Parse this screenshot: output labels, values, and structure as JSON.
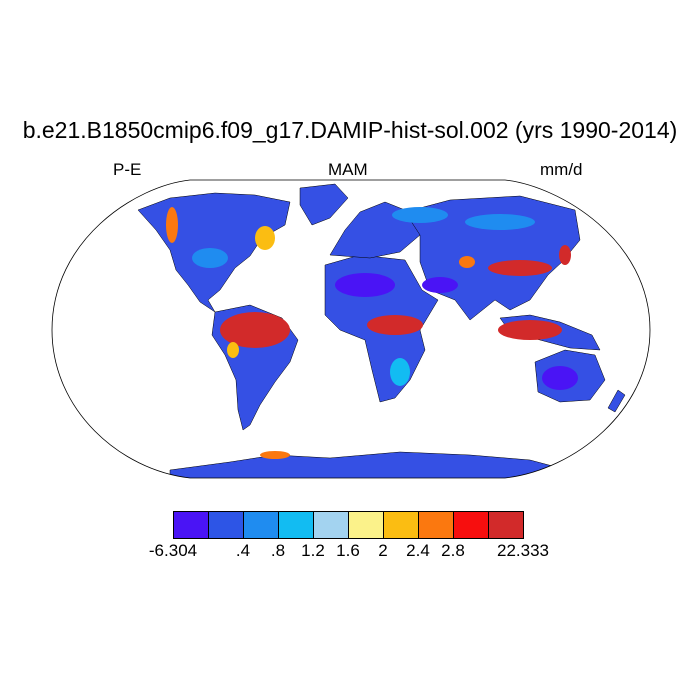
{
  "figure": {
    "title": "b.e21.B1850cmip6.f09_g17.DAMIP-hist-sol.002 (yrs 1990-2014)",
    "left_label": "P-E",
    "center_label": "MAM",
    "right_label": "mm/d"
  },
  "colorbar": {
    "colors": [
      "#4a14f5",
      "#2d55e6",
      "#1f8cf0",
      "#12bcf2",
      "#a3d3f0",
      "#fbf28a",
      "#fbbd12",
      "#fb780f",
      "#f70e0e",
      "#d22a2a"
    ],
    "labels": [
      "-6.304",
      ".4",
      ".8",
      "1.2",
      "1.6",
      "2",
      "2.4",
      "2.8",
      "22.333"
    ]
  },
  "map": {
    "projection": "robinson",
    "ocean_color": "#ffffff",
    "land_fill": "#3550e4",
    "coast_color": "#000000"
  }
}
